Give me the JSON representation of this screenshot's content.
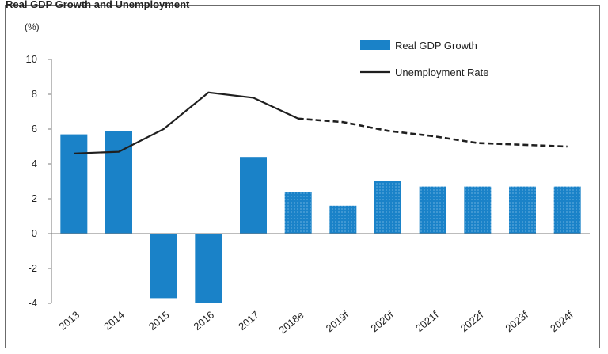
{
  "header": {
    "caption": "Real GDP Growth and Unemployment"
  },
  "colors": {
    "bar": "#1a82c8",
    "line": "#1f1f1f",
    "axis": "#7a7a7a"
  },
  "chart_data": {
    "type": "bar",
    "title": "",
    "ylabel": "(%)",
    "xlabel": "",
    "ylim": [
      -4,
      10
    ],
    "yticks": [
      10,
      8,
      6,
      4,
      2,
      0,
      -2,
      -4
    ],
    "grid": false,
    "legend_position": "top-right",
    "categories": [
      "2013",
      "2014",
      "2015",
      "2016",
      "2017",
      "2018e",
      "2019f",
      "2020f",
      "2021f",
      "2022f",
      "2023f",
      "2024f"
    ],
    "series": [
      {
        "name": "Real GDP Growth",
        "kind": "bar",
        "values": [
          5.7,
          5.9,
          -3.7,
          -4.0,
          4.4,
          2.4,
          1.6,
          3.0,
          2.7,
          2.7,
          2.7,
          2.7
        ],
        "projected_from_index": 5
      },
      {
        "name": "Unemployment Rate",
        "kind": "line",
        "values": [
          4.6,
          4.7,
          6.0,
          8.1,
          7.8,
          6.6,
          6.4,
          5.9,
          5.6,
          5.2,
          5.1,
          5.0
        ],
        "dashed_from_index": 5
      }
    ]
  }
}
